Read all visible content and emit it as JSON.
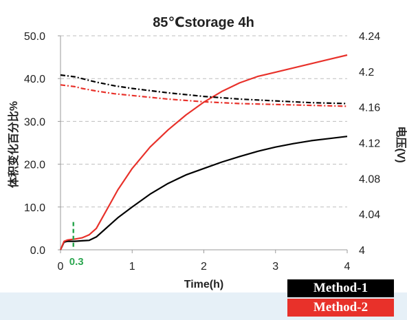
{
  "chart_data": {
    "type": "line",
    "title": "85℃storage 4h",
    "xlabel": "Time(h)",
    "ylabel_left": "体积变化百分比%",
    "ylabel_right": "电压(V)",
    "xlim": [
      0,
      4
    ],
    "ylim_left": [
      0,
      50
    ],
    "ylim_right": [
      4,
      4.24
    ],
    "x_ticks": [
      "0",
      "1",
      "2",
      "3",
      "4"
    ],
    "y_left_ticks": [
      "0.0",
      "10.0",
      "20.0",
      "30.0",
      "40.0",
      "50.0"
    ],
    "y_right_ticks": [
      "4",
      "4.04",
      "4.08",
      "4.12",
      "4.16",
      "4.2",
      "4.24"
    ],
    "grid": "horizontal dashed",
    "legend_position": "bottom-right",
    "annotation": {
      "text": "0.3",
      "x": 0.18,
      "color": "#2ca650"
    },
    "series": [
      {
        "name": "Method-1",
        "axis": "left",
        "style": "solid",
        "color": "#000000",
        "x": [
          0,
          0.05,
          0.1,
          0.2,
          0.3,
          0.4,
          0.5,
          0.6,
          0.7,
          0.8,
          1.0,
          1.25,
          1.5,
          1.75,
          2.0,
          2.25,
          2.5,
          2.75,
          3.0,
          3.25,
          3.5,
          3.75,
          4.0
        ],
        "values": [
          0,
          1.8,
          2.0,
          2.0,
          2.1,
          2.2,
          3.0,
          4.5,
          6.0,
          7.5,
          10.0,
          13.0,
          15.5,
          17.5,
          19.0,
          20.5,
          21.8,
          23.0,
          24.0,
          24.8,
          25.5,
          26.0,
          26.5
        ]
      },
      {
        "name": "Method-2",
        "axis": "left",
        "style": "solid",
        "color": "#e8312a",
        "x": [
          0,
          0.05,
          0.1,
          0.2,
          0.3,
          0.4,
          0.5,
          0.6,
          0.7,
          0.8,
          1.0,
          1.25,
          1.5,
          1.75,
          2.0,
          2.25,
          2.5,
          2.75,
          3.0,
          3.25,
          3.5,
          3.75,
          4.0
        ],
        "values": [
          0,
          2.0,
          2.3,
          2.5,
          2.8,
          3.5,
          5.0,
          8.0,
          11.0,
          14.0,
          19.0,
          24.0,
          28.0,
          31.5,
          34.5,
          37.0,
          39.0,
          40.5,
          41.5,
          42.5,
          43.5,
          44.5,
          45.5
        ]
      },
      {
        "name": "Method-1",
        "axis": "right",
        "style": "dash-dot",
        "color": "#000000",
        "x": [
          0,
          0.1,
          0.2,
          0.3,
          0.5,
          0.75,
          1.0,
          1.5,
          2.0,
          2.5,
          3.0,
          3.5,
          4.0
        ],
        "values": [
          4.196,
          4.195,
          4.194,
          4.192,
          4.188,
          4.184,
          4.181,
          4.176,
          4.172,
          4.169,
          4.167,
          4.165,
          4.164
        ]
      },
      {
        "name": "Method-2",
        "axis": "right",
        "style": "dash-dot",
        "color": "#e8312a",
        "x": [
          0,
          0.1,
          0.2,
          0.3,
          0.5,
          0.75,
          1.0,
          1.5,
          2.0,
          2.5,
          3.0,
          3.5,
          4.0
        ],
        "values": [
          4.185,
          4.184,
          4.183,
          4.181,
          4.178,
          4.175,
          4.173,
          4.169,
          4.166,
          4.164,
          4.163,
          4.162,
          4.161
        ]
      }
    ]
  }
}
